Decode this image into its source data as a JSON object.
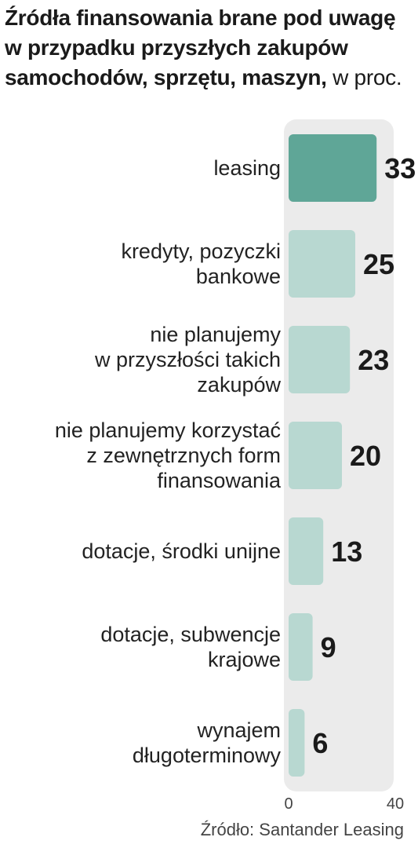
{
  "chart_data": {
    "type": "bar",
    "orientation": "horizontal",
    "title": "Źródła finansowania brane pod uwagę w przypadku przyszłych zakupów samochodów, sprzętu, maszyn,",
    "unit": "w proc.",
    "categories": [
      [
        "leasing"
      ],
      [
        "kredyty, pozyczki",
        "bankowe"
      ],
      [
        "nie planujemy",
        "w przyszłości takich",
        "zakupów"
      ],
      [
        "nie planujemy korzystać",
        "z zewnętrznych form",
        "finansowania"
      ],
      [
        "dotacje, środki unijne"
      ],
      [
        "dotacje, subwencje",
        "krajowe"
      ],
      [
        "wynajem",
        "długoterminowy"
      ]
    ],
    "values": [
      33,
      25,
      23,
      20,
      13,
      9,
      6
    ],
    "value_labels": [
      "33",
      "25",
      "23",
      "20",
      "13",
      "9",
      "6"
    ],
    "xlim": [
      0,
      40
    ],
    "ticks": [
      "0",
      "40"
    ],
    "grid": false,
    "legend": "none",
    "source": "Źródło: Santander Leasing"
  },
  "colors": {
    "highlight_bar": "#5fa697",
    "bar": "#b8d8d1",
    "track": "#ebebeb"
  }
}
